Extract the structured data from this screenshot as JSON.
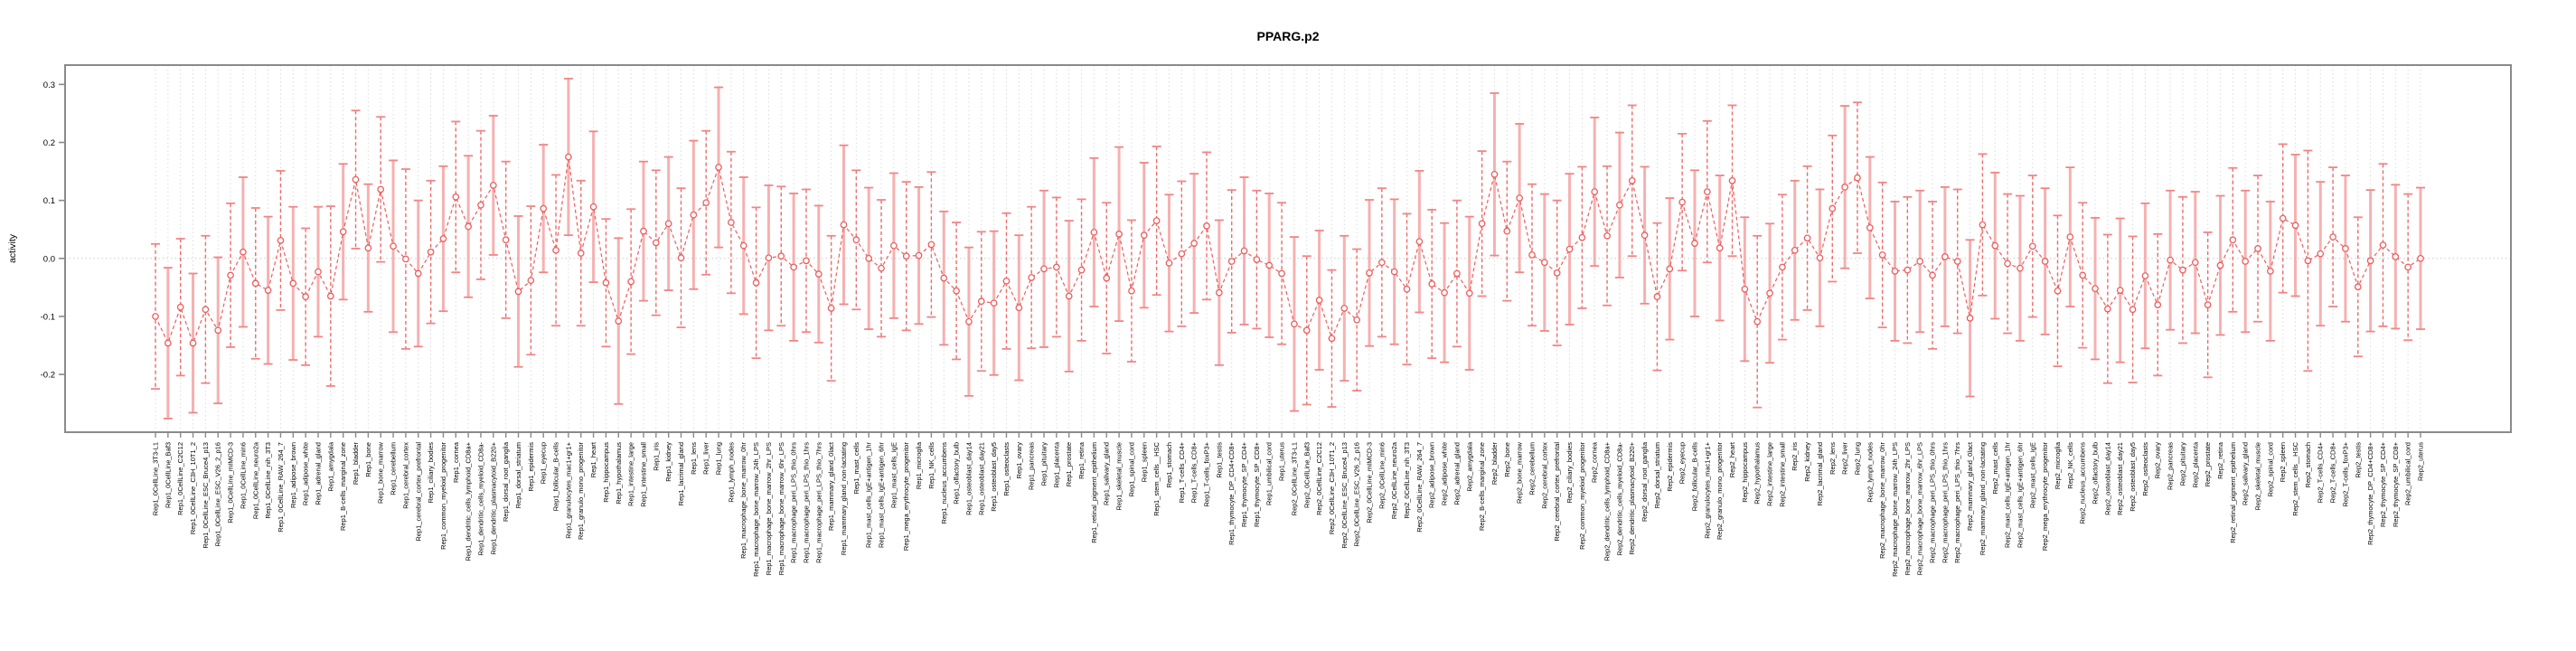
{
  "chart_data": {
    "type": "line",
    "title": "PPARG.p2",
    "ylabel": "activity",
    "xlabel": "",
    "ylim": [
      -0.2996,
      0.3333
    ],
    "yticks": [
      0.3,
      0.2,
      0.1,
      0.0,
      -0.1,
      -0.2
    ],
    "ytick_labels": [
      "0.3",
      "0.2",
      "0.1",
      "0.0",
      "-0.1",
      "-0.2"
    ],
    "grid": "dotted vertical gridline at every category; dotted horizontal line at y=0",
    "legend": "none",
    "marker": "open-circle",
    "line_style": "dashed",
    "error_bars": "symmetric confidence intervals with end caps, alternating dashed-thin and solid-thick-pink styles",
    "colors": {
      "series": "#ee5c5c",
      "error_bar_solid": "#f5a9a9",
      "error_bar_dashed": "#ef6a6a",
      "error_bar_cap": "#f28585",
      "gridline": "#dcdcdc",
      "zero_line": "#c9c9c9",
      "axis_box": "#8a8a8a",
      "text": "#000000"
    },
    "categories": [
      "Rep1_0CellLine_3T3-L1",
      "Rep1_0CellLine_Baf3",
      "Rep1_0CellLine_C2C12",
      "Rep1_0CellLine_C3H_10T1_2",
      "Rep1_0CellLine_ESC_Bruce4_p13",
      "Rep1_0CellLine_ESC_V26_2_p16",
      "Rep1_0CellLine_mIMCD-3",
      "Rep1_0CellLine_min6",
      "Rep1_0CellLine_neuro2a",
      "Rep1_0CellLine_nih_3T3",
      "Rep1_0CellLine_RAW_264_7",
      "Rep1_adipose_brown",
      "Rep1_adipose_white",
      "Rep1_adrenal_gland",
      "Rep1_amygdala",
      "Rep1_B-cells_marginal_zone",
      "Rep1_bladder",
      "Rep1_bone",
      "Rep1_bone_marrow",
      "Rep1_cerebellum",
      "Rep1_cerebral_cortex",
      "Rep1_cerebral_cortex_prefrontal",
      "Rep1_ciliary_bodies",
      "Rep1_common_myeloid_progenitor",
      "Rep1_cornea",
      "Rep1_dendritic_cells_lymphoid_CD8a+",
      "Rep1_dendritic_cells_myeloid_CD8a-",
      "Rep1_dendritic_plasmacytoid_B220+",
      "Rep1_dorsal_root_ganglia",
      "Rep1_dorsal_striatum",
      "Rep1_epidermis",
      "Rep1_eyecup",
      "Rep1_follicular_B-cells",
      "Rep1_granulocytes_mac1+gr1+",
      "Rep1_granulo_mono_progenitor",
      "Rep1_heart",
      "Rep1_hippocampus",
      "Rep1_hypothalamus",
      "Rep1_intestine_large",
      "Rep1_intestine_small",
      "Rep1_iris",
      "Rep1_kidney",
      "Rep1_lacrimal_gland",
      "Rep1_lens",
      "Rep1_liver",
      "Rep1_lung",
      "Rep1_lymph_nodes",
      "Rep1_macrophage_bone_marrow_0hr",
      "Rep1_macrophage_bone_marrow_24h_LPS",
      "Rep1_macrophage_bone_marrow_2hr_LPS",
      "Rep1_macrophage_bone_marrow_6hr_LPS",
      "Rep1_macrophage_peri_LPS_thio_0hrs",
      "Rep1_macrophage_peri_LPS_thio_1hrs",
      "Rep1_macrophage_peri_LPS_thio_7hrs",
      "Rep1_mammary_gland_0lact",
      "Rep1_mammary_gland_non-lactating",
      "Rep1_mast_cells",
      "Rep1_mast_cells_IgE+antigen_1hr",
      "Rep1_mast_cells_IgE+antigen_6hr",
      "Rep1_mast_cells_IgE",
      "Rep1_mega_erythrocyte_progenitor",
      "Rep1_microglia",
      "Rep1_NK_cells",
      "Rep1_nucleus_accumbens",
      "Rep1_olfactory_bulb",
      "Rep1_osteoblast_day14",
      "Rep1_osteoblast_day21",
      "Rep1_osteoblast_day5",
      "Rep1_osteoclasts",
      "Rep1_ovary",
      "Rep1_pancreas",
      "Rep1_pituitary",
      "Rep1_placenta",
      "Rep1_prostate",
      "Rep1_retina",
      "Rep1_retinal_pigment_epithelium",
      "Rep1_salivary_gland",
      "Rep1_skeletal_muscle",
      "Rep1_spinal_cord",
      "Rep1_spleen",
      "Rep1_stem_cells__HSC",
      "Rep1_stomach",
      "Rep1_T-cells_CD4+",
      "Rep1_T-cells_CD8+",
      "Rep1_T-cells_foxP3+",
      "Rep1_testis",
      "Rep1_thymocyte_DP_CD4+CD8+",
      "Rep1_thymocyte_SP_CD4+",
      "Rep1_thymocyte_SP_CD8+",
      "Rep1_umbilical_cord",
      "Rep1_uterus",
      "Rep2_0CellLine_3T3-L1",
      "Rep2_0CellLine_Baf3",
      "Rep2_0CellLine_C2C12",
      "Rep2_0CellLine_C3H_10T1_2",
      "Rep2_0CellLine_ESC_Bruce4_p13",
      "Rep2_0CellLine_ESC_V26_2_p16",
      "Rep2_0CellLine_mIMCD-3",
      "Rep2_0CellLine_min6",
      "Rep2_0CellLine_neuro2a",
      "Rep2_0CellLine_nih_3T3",
      "Rep2_0CellLine_RAW_264_7",
      "Rep2_adipose_brown",
      "Rep2_adipose_white",
      "Rep2_adrenal_gland",
      "Rep2_amygdala",
      "Rep2_B-cells_marginal_zone",
      "Rep2_bladder",
      "Rep2_bone",
      "Rep2_bone_marrow",
      "Rep2_cerebellum",
      "Rep2_cerebral_cortex",
      "Rep2_cerebral_cortex_prefrontal",
      "Rep2_ciliary_bodies",
      "Rep2_common_myeloid_progenitor",
      "Rep2_cornea",
      "Rep2_dendritic_cells_lymphoid_CD8a+",
      "Rep2_dendritic_cells_myeloid_CD8a-",
      "Rep2_dendritic_plasmacytoid_B220+",
      "Rep2_dorsal_root_ganglia",
      "Rep2_dorsal_striatum",
      "Rep2_epidermis",
      "Rep2_eyecup",
      "Rep2_follicular_B-cells",
      "Rep2_granulocytes_mac1+gr1+",
      "Rep2_granulo_mono_progenitor",
      "Rep2_heart",
      "Rep2_hippocampus",
      "Rep2_hypothalamus",
      "Rep2_intestine_large",
      "Rep2_intestine_small",
      "Rep2_iris",
      "Rep2_kidney",
      "Rep2_lacrimal_gland",
      "Rep2_lens",
      "Rep2_liver",
      "Rep2_lung",
      "Rep2_lymph_nodes",
      "Rep2_macrophage_bone_marrow_0hr",
      "Rep2_macrophage_bone_marrow_24h_LPS",
      "Rep2_macrophage_bone_marrow_2hr_LPS",
      "Rep2_macrophage_bone_marrow_6hr_LPS",
      "Rep2_macrophage_peri_LPS_thio_0hrs",
      "Rep2_macrophage_peri_LPS_thio_1hrs",
      "Rep2_macrophage_peri_LPS_thio_7hrs",
      "Rep2_mammary_gland_0lact",
      "Rep2_mammary_gland_non-lactating",
      "Rep2_mast_cells",
      "Rep2_mast_cells_IgE+antigen_1hr",
      "Rep2_mast_cells_IgE+antigen_6hr",
      "Rep2_mast_cells_IgE",
      "Rep2_mega_erythrocyte_progenitor",
      "Rep2_microglia",
      "Rep2_NK_cells",
      "Rep2_nucleus_accumbens",
      "Rep2_olfactory_bulb",
      "Rep2_osteoblast_day14",
      "Rep2_osteoblast_day21",
      "Rep2_osteoblast_day5",
      "Rep2_osteoclasts",
      "Rep2_ovary",
      "Rep2_pancreas",
      "Rep2_pituitary",
      "Rep2_placenta",
      "Rep2_prostate",
      "Rep2_retina",
      "Rep2_retinal_pigment_epithelium",
      "Rep2_salivary_gland",
      "Rep2_skeletal_muscle",
      "Rep2_spinal_cord",
      "Rep2_spleen",
      "Rep2_stem_cells__HSC",
      "Rep2_stomach",
      "Rep2_T-cells_CD4+",
      "Rep2_T-cells_CD8+",
      "Rep2_T-cells_foxP3+",
      "Rep2_testis",
      "Rep2_thymocyte_DP_CD4+CD8+",
      "Rep2_thymocyte_SP_CD4+",
      "Rep2_thymocyte_SP_CD8+",
      "Rep2_umbilical_cord",
      "Rep2_uterus"
    ],
    "series": [
      {
        "name": "activity",
        "values": [
          -0.1,
          -0.146,
          -0.084,
          -0.146,
          -0.088,
          -0.124,
          -0.029,
          0.011,
          -0.043,
          -0.055,
          0.031,
          -0.043,
          -0.066,
          -0.023,
          -0.065,
          0.046,
          0.136,
          0.018,
          0.119,
          0.021,
          -0.001,
          -0.026,
          0.011,
          0.034,
          0.106,
          0.055,
          0.092,
          0.126,
          0.032,
          -0.057,
          -0.038,
          0.086,
          0.014,
          0.175,
          0.009,
          0.089,
          -0.042,
          -0.108,
          -0.04,
          0.047,
          0.027,
          0.06,
          0.001,
          0.075,
          0.096,
          0.157,
          0.062,
          0.022,
          -0.042,
          0.001,
          0.004,
          -0.015,
          -0.004,
          -0.027,
          -0.086,
          0.058,
          0.032,
          0.0,
          -0.017,
          0.022,
          0.004,
          0.005,
          0.024,
          -0.034,
          -0.056,
          -0.109,
          -0.074,
          -0.077,
          -0.039,
          -0.085,
          -0.033,
          -0.018,
          -0.015,
          -0.065,
          -0.02,
          0.045,
          -0.034,
          0.042,
          -0.056,
          0.04,
          0.065,
          -0.008,
          0.008,
          0.026,
          0.056,
          -0.059,
          -0.005,
          0.013,
          -0.002,
          -0.012,
          -0.026,
          -0.113,
          -0.124,
          -0.072,
          -0.138,
          -0.086,
          -0.106,
          -0.025,
          -0.007,
          -0.023,
          -0.053,
          0.029,
          -0.044,
          -0.059,
          -0.026,
          -0.06,
          0.06,
          0.145,
          0.047,
          0.104,
          0.006,
          -0.007,
          -0.025,
          0.016,
          0.036,
          0.115,
          0.039,
          0.092,
          0.134,
          0.04,
          -0.066,
          -0.018,
          0.097,
          0.026,
          0.115,
          0.018,
          0.134,
          -0.053,
          -0.109,
          -0.06,
          -0.015,
          0.014,
          0.035,
          0.001,
          0.086,
          0.123,
          0.139,
          0.053,
          0.006,
          -0.022,
          -0.02,
          -0.005,
          -0.029,
          0.003,
          -0.005,
          -0.103,
          0.058,
          0.022,
          -0.009,
          -0.017,
          0.021,
          -0.005,
          -0.056,
          0.037,
          -0.029,
          -0.052,
          -0.087,
          -0.055,
          -0.088,
          -0.03,
          -0.08,
          -0.003,
          -0.02,
          -0.007,
          -0.08,
          -0.012,
          0.032,
          -0.005,
          0.017,
          -0.022,
          0.069,
          0.057,
          -0.004,
          0.008,
          0.037,
          0.017,
          -0.049,
          -0.004,
          0.023,
          0.003,
          -0.015,
          0.0
        ]
      }
    ],
    "ci_halfwidth": [
      0.125,
      0.13,
      0.118,
      0.12,
      0.127,
      0.126,
      0.124,
      0.129,
      0.13,
      0.127,
      0.12,
      0.132,
      0.118,
      0.112,
      0.155,
      0.117,
      0.119,
      0.11,
      0.125,
      0.148,
      0.155,
      0.126,
      0.123,
      0.125,
      0.13,
      0.122,
      0.128,
      0.12,
      0.135,
      0.13,
      0.128,
      0.11,
      0.13,
      0.135,
      0.125,
      0.13,
      0.11,
      0.143,
      0.125,
      0.12,
      0.125,
      0.115,
      0.12,
      0.128,
      0.124,
      0.138,
      0.122,
      0.118,
      0.13,
      0.125,
      0.12,
      0.127,
      0.123,
      0.118,
      0.125,
      0.137,
      0.12,
      0.122,
      0.118,
      0.125,
      0.128,
      0.118,
      0.125,
      0.115,
      0.118,
      0.128,
      0.12,
      0.124,
      0.117,
      0.125,
      0.122,
      0.135,
      0.12,
      0.13,
      0.122,
      0.128,
      0.13,
      0.15,
      0.122,
      0.125,
      0.128,
      0.118,
      0.125,
      0.12,
      0.127,
      0.125,
      0.123,
      0.127,
      0.119,
      0.124,
      0.122,
      0.15,
      0.128,
      0.12,
      0.118,
      0.125,
      0.122,
      0.126,
      0.128,
      0.125,
      0.13,
      0.122,
      0.128,
      0.12,
      0.126,
      0.132,
      0.125,
      0.14,
      0.12,
      0.128,
      0.122,
      0.118,
      0.125,
      0.13,
      0.122,
      0.128,
      0.12,
      0.125,
      0.13,
      0.118,
      0.127,
      0.122,
      0.118,
      0.126,
      0.122,
      0.125,
      0.13,
      0.124,
      0.148,
      0.12,
      0.125,
      0.12,
      0.124,
      0.118,
      0.126,
      0.14,
      0.13,
      0.122,
      0.125,
      0.12,
      0.126,
      0.122,
      0.127,
      0.12,
      0.124,
      0.135,
      0.122,
      0.126,
      0.12,
      0.125,
      0.122,
      0.126,
      0.13,
      0.12,
      0.125,
      0.122,
      0.128,
      0.124,
      0.126,
      0.125,
      0.122,
      0.12,
      0.126,
      0.122,
      0.125,
      0.12,
      0.124,
      0.122,
      0.126,
      0.12,
      0.128,
      0.122,
      0.19,
      0.124,
      0.12,
      0.126,
      0.12,
      0.122,
      0.14,
      0.124,
      0.126,
      0.122
    ]
  }
}
